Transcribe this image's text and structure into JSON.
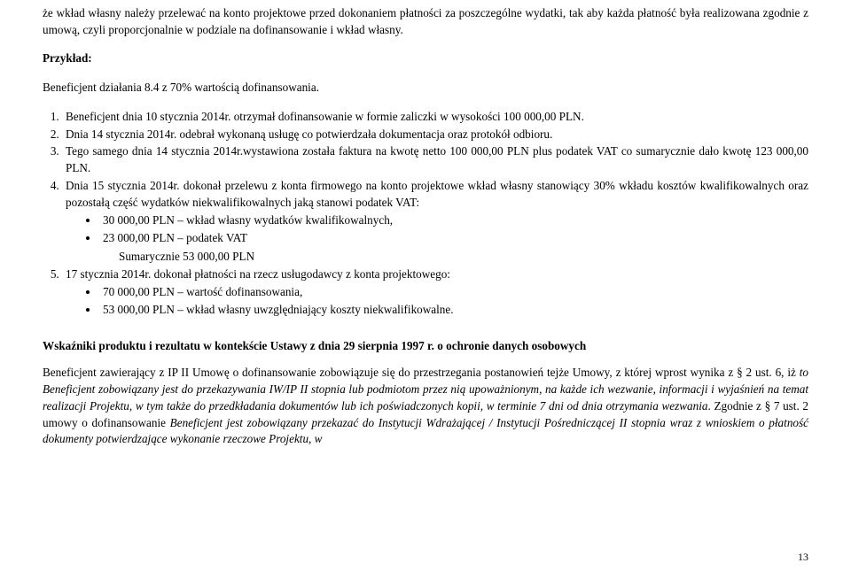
{
  "intro_para": "że wkład własny należy przelewać na konto projektowe przed dokonaniem płatności za poszczególne wydatki, tak aby każda płatność była realizowana zgodnie z umową, czyli proporcjonalnie w podziale na dofinansowanie i wkład własny.",
  "example_label": "Przykład:",
  "example_sentence": "Beneficjent działania 8.4 z 70% wartością dofinansowania.",
  "ol_items": [
    "Beneficjent dnia 10 stycznia 2014r. otrzymał dofinansowanie w formie zaliczki w wysokości 100 000,00 PLN.",
    "Dnia 14 stycznia 2014r. odebrał wykonaną usługę co potwierdzała dokumentacja oraz protokół odbioru.",
    "Tego samego dnia 14 stycznia 2014r.wystawiona została faktura na kwotę netto 100 000,00 PLN plus podatek VAT co sumarycznie dało kwotę 123 000,00 PLN.",
    "Dnia 15 stycznia 2014r. dokonał przelewu z konta firmowego na konto projektowe wkład własny stanowiący 30% wkładu kosztów kwalifikowalnych oraz pozostałą część wydatków niekwalifikowalnych jaką stanowi podatek VAT:"
  ],
  "ul_block1": [
    "30 000,00 PLN – wkład własny wydatków kwalifikowalnych,",
    "23 000,00 PLN – podatek VAT"
  ],
  "sum_line": "Sumarycznie 53 000,00 PLN",
  "ol_item5": "17 stycznia 2014r. dokonał płatności na rzecz usługodawcy z konta projektowego:",
  "ul_block2": [
    "70 000,00 PLN – wartość dofinansowania,",
    "53 000,00 PLN – wkład własny uwzględniający koszty niekwalifikowalne."
  ],
  "section_heading": "Wskaźniki produktu i rezultatu w kontekście Ustawy z dnia 29 sierpnia 1997 r. o ochronie danych osobowych",
  "body_plain1": "Beneficjent zawierający z IP II Umowę o dofinansowanie zobowiązuje się do przestrzegania postanowień tejże Umowy, z której wprost wynika z § 2 ust. 6, iż ",
  "body_italic1": "to Beneficjent zobowiązany jest do przekazywania IW/IP II stopnia lub podmiotom przez nią upoważnionym, na każde ich wezwanie, informacji i wyjaśnień na temat realizacji Projektu, w tym także do przedkładania dokumentów lub ich poświadczonych kopii, w terminie 7 dni od dnia otrzymania wezwania",
  "body_plain2": ". Zgodnie z § 7 ust. 2 umowy o dofinansowanie ",
  "body_italic2": "Beneficjent jest zobowiązany przekazać do Instytucji Wdrażającej / Instytucji Pośredniczącej II stopnia wraz z wnioskiem o płatność dokumenty potwierdzające wykonanie rzeczowe Projektu, w",
  "page_number": "13"
}
